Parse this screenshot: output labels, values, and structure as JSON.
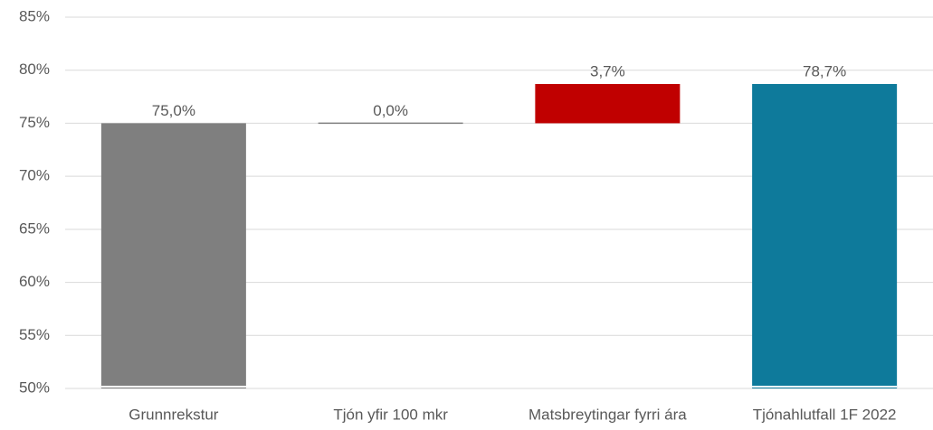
{
  "chart_data": {
    "type": "waterfall",
    "categories": [
      "Grunnrekstur",
      "Tjón yfir 100 mkr",
      "Matsbreytingar fyrri ára",
      "Tjónahlutfall 1F 2022"
    ],
    "values": [
      75.0,
      0.0,
      3.7,
      78.7
    ],
    "value_labels": [
      "75,0%",
      "0,0%",
      "3,7%",
      "78,7%"
    ],
    "measure": [
      "absolute",
      "relative",
      "relative",
      "total"
    ],
    "colors": [
      "#7f7f7f",
      "#7f7f7f",
      "#c00000",
      "#0e7a9b"
    ],
    "ylim": [
      50,
      85
    ],
    "yticks": [
      {
        "value": 50,
        "label": "50%"
      },
      {
        "value": 55,
        "label": "55%"
      },
      {
        "value": 60,
        "label": "60%"
      },
      {
        "value": 65,
        "label": "65%"
      },
      {
        "value": 70,
        "label": "70%"
      },
      {
        "value": 75,
        "label": "75%"
      },
      {
        "value": 80,
        "label": "80%"
      },
      {
        "value": 85,
        "label": "85%"
      }
    ],
    "grid": true
  }
}
